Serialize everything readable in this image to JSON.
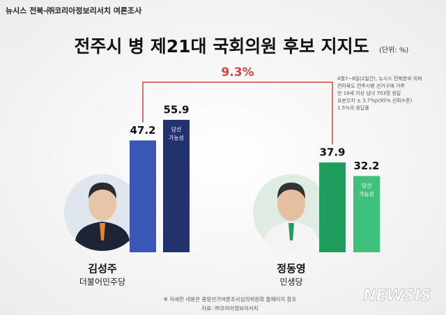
{
  "header": "뉴시스 전북-㈜코리아정보리서치 여론조사",
  "chart_data": {
    "type": "bar",
    "title": "전주시 병 제21대 국회의원 후보 지지도",
    "unit": "(단위: %)",
    "categories": [
      "김성주",
      "정동영"
    ],
    "parties": [
      "더불어민주당",
      "민생당"
    ],
    "series": [
      {
        "colors": [
          "#3a56b6",
          "#1f9d5d"
        ],
        "values": [
          47.2,
          37.9
        ]
      },
      {
        "label": [
          "당선",
          "가능성"
        ],
        "colors": [
          "#24316f",
          "#3ec27b"
        ],
        "values": [
          55.9,
          32.2
        ]
      }
    ],
    "gap": {
      "value": 9.3,
      "label": "9.3%"
    },
    "note": [
      "4월7~8일(2일간), 뉴시스 전북본부 의뢰",
      "전라북도 전주시병 선거구에 거주",
      "만 18세 이상 남녀 703명 응답",
      "표본오차 ± 3.7%p(95% 신뢰수준)",
      "1.5%의 응답률"
    ]
  },
  "footer": [
    "※ 자세한 내용은 중앙선거여론조사심의위원회 홈페이지 참조",
    "자료: ㈜코리아정보리서치"
  ],
  "watermark": "NEWSIS"
}
